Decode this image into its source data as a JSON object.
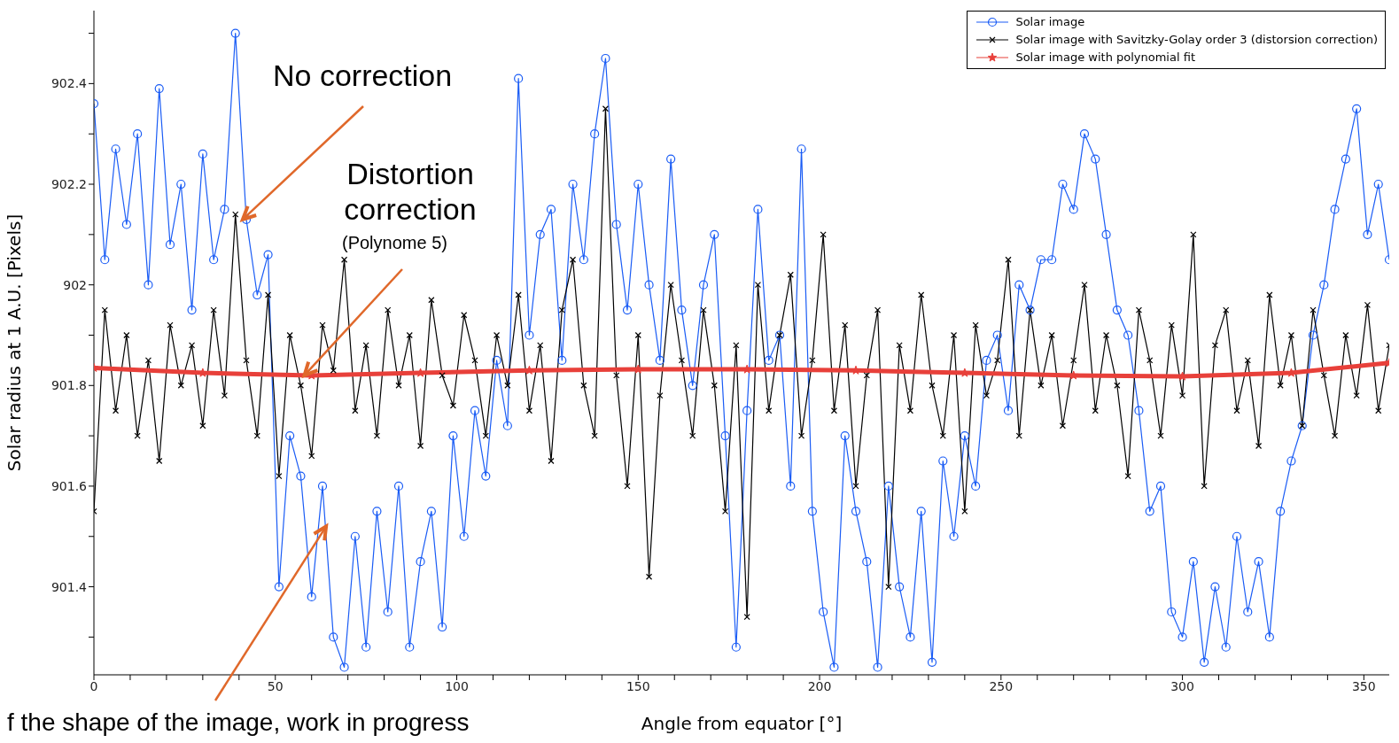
{
  "chart_data": {
    "type": "line",
    "xlabel": "Angle from equator [°]",
    "ylabel": "Solar radius at 1 A.U. [Pixels]",
    "xlim": [
      0,
      357
    ],
    "ylim": [
      901.225,
      902.545
    ],
    "xticks": [
      0,
      {
        "value": 10,
        "label": null
      },
      {
        "value": 20,
        "label": null
      },
      {
        "value": 30,
        "label": null
      },
      {
        "value": 40,
        "label": null
      },
      50,
      {
        "value": 60,
        "label": null
      },
      {
        "value": 70,
        "label": null
      },
      {
        "value": 80,
        "label": null
      },
      {
        "value": 90,
        "label": null
      },
      100,
      {
        "value": 110,
        "label": null
      },
      {
        "value": 120,
        "label": null
      },
      {
        "value": 130,
        "label": null
      },
      {
        "value": 140,
        "label": null
      },
      150,
      {
        "value": 160,
        "label": null
      },
      {
        "value": 170,
        "label": null
      },
      {
        "value": 180,
        "label": null
      },
      {
        "value": 190,
        "label": null
      },
      200,
      {
        "value": 210,
        "label": null
      },
      {
        "value": 220,
        "label": null
      },
      {
        "value": 230,
        "label": null
      },
      {
        "value": 240,
        "label": null
      },
      250,
      {
        "value": 260,
        "label": null
      },
      {
        "value": 270,
        "label": null
      },
      {
        "value": 280,
        "label": null
      },
      {
        "value": 290,
        "label": null
      },
      300,
      {
        "value": 310,
        "label": null
      },
      {
        "value": 320,
        "label": null
      },
      {
        "value": 330,
        "label": null
      },
      {
        "value": 340,
        "label": null
      },
      350
    ],
    "yticks": [
      {
        "value": 901.3,
        "label": null
      },
      901.4,
      {
        "value": 901.5,
        "label": null
      },
      901.6,
      {
        "value": 901.7,
        "label": null
      },
      901.8,
      {
        "value": 901.9,
        "label": null
      },
      902,
      {
        "value": 902.1,
        "label": null
      },
      902.2,
      {
        "value": 902.3,
        "label": null
      },
      902.4,
      {
        "value": 902.5,
        "label": null
      }
    ],
    "grid": false,
    "legend": "top right",
    "line_style": "solid",
    "x": [
      0,
      3,
      6,
      9,
      12,
      15,
      18,
      21,
      24,
      27,
      30,
      33,
      36,
      39,
      42,
      45,
      48,
      51,
      54,
      57,
      60,
      63,
      66,
      69,
      72,
      75,
      78,
      81,
      84,
      87,
      90,
      93,
      96,
      99,
      102,
      105,
      108,
      111,
      114,
      117,
      120,
      123,
      126,
      129,
      132,
      135,
      138,
      141,
      144,
      147,
      150,
      153,
      156,
      159,
      162,
      165,
      168,
      171,
      174,
      177,
      180,
      183,
      186,
      189,
      192,
      195,
      198,
      201,
      204,
      207,
      210,
      213,
      216,
      219,
      222,
      225,
      228,
      231,
      234,
      237,
      240,
      243,
      246,
      249,
      252,
      255,
      258,
      261,
      264,
      267,
      270,
      273,
      276,
      279,
      282,
      285,
      288,
      291,
      294,
      297,
      300,
      303,
      306,
      309,
      312,
      315,
      318,
      321,
      324,
      327,
      330,
      333,
      336,
      339,
      342,
      345,
      348,
      351,
      354,
      357
    ],
    "series": [
      {
        "name": "Solar image",
        "color": "#1a5cf5",
        "marker": "circle",
        "values": [
          902.36,
          902.05,
          902.27,
          902.12,
          902.3,
          902.0,
          902.39,
          902.08,
          902.2,
          901.95,
          902.26,
          902.05,
          902.15,
          902.5,
          902.13,
          901.98,
          902.06,
          901.4,
          901.7,
          901.62,
          901.38,
          901.6,
          901.3,
          901.24,
          901.5,
          901.28,
          901.55,
          901.35,
          901.6,
          901.28,
          901.45,
          901.55,
          901.32,
          901.7,
          901.5,
          901.75,
          901.62,
          901.85,
          901.72,
          902.41,
          901.9,
          902.1,
          902.15,
          901.85,
          902.2,
          902.05,
          902.3,
          902.45,
          902.12,
          901.95,
          902.2,
          902.0,
          901.85,
          902.25,
          901.95,
          901.8,
          902.0,
          902.1,
          901.7,
          901.28,
          901.75,
          902.15,
          901.85,
          901.9,
          901.6,
          902.27,
          901.55,
          901.35,
          901.24,
          901.7,
          901.55,
          901.45,
          901.24,
          901.6,
          901.4,
          901.3,
          901.55,
          901.25,
          901.65,
          901.5,
          901.7,
          901.6,
          901.85,
          901.9,
          901.75,
          902.0,
          901.95,
          902.05,
          902.05,
          902.2,
          902.15,
          902.3,
          902.25,
          902.1,
          901.95,
          901.9,
          901.75,
          901.55,
          901.6,
          901.35,
          901.3,
          901.45,
          901.25,
          901.4,
          901.28,
          901.5,
          901.35,
          901.45,
          901.3,
          901.55,
          901.65,
          901.72,
          901.9,
          902.0,
          902.15,
          902.25,
          902.35,
          902.1,
          902.2,
          902.05
        ]
      },
      {
        "name": "Solar image with Savitzky-Golay order 3 (distorsion correction)",
        "color": "#000000",
        "marker": "cross",
        "values": [
          901.55,
          901.95,
          901.75,
          901.9,
          901.7,
          901.85,
          901.65,
          901.92,
          901.8,
          901.88,
          901.72,
          901.95,
          901.78,
          902.14,
          901.85,
          901.7,
          901.98,
          901.62,
          901.9,
          901.8,
          901.66,
          901.92,
          901.83,
          902.05,
          901.75,
          901.88,
          901.7,
          901.95,
          901.8,
          901.9,
          901.68,
          901.97,
          901.82,
          901.76,
          901.94,
          901.85,
          901.7,
          901.9,
          901.8,
          901.98,
          901.75,
          901.88,
          901.65,
          901.95,
          902.05,
          901.8,
          901.7,
          902.35,
          901.82,
          901.6,
          901.9,
          901.42,
          901.78,
          902.0,
          901.85,
          901.7,
          901.95,
          901.8,
          901.55,
          901.88,
          901.34,
          902.0,
          901.75,
          901.9,
          902.02,
          901.7,
          901.85,
          902.1,
          901.75,
          901.92,
          901.6,
          901.82,
          901.95,
          901.4,
          901.88,
          901.75,
          901.98,
          901.8,
          901.7,
          901.9,
          901.55,
          901.92,
          901.78,
          901.85,
          902.05,
          901.7,
          901.95,
          901.8,
          901.9,
          901.72,
          901.85,
          902.0,
          901.75,
          901.9,
          901.8,
          901.62,
          901.95,
          901.85,
          901.7,
          901.92,
          901.78,
          902.1,
          901.6,
          901.88,
          901.95,
          901.75,
          901.85,
          901.68,
          901.98,
          901.8,
          901.9,
          901.72,
          901.95,
          901.82,
          901.7,
          901.9,
          901.78,
          901.96,
          901.75,
          901.88
        ]
      },
      {
        "name": "Solar image with polynomial fit",
        "color": "#e8403a",
        "marker": "star",
        "x": [
          0,
          30,
          60,
          90,
          120,
          150,
          180,
          210,
          240,
          270,
          300,
          330,
          357
        ],
        "values": [
          901.835,
          901.825,
          901.82,
          901.825,
          901.83,
          901.832,
          901.832,
          901.83,
          901.825,
          901.82,
          901.818,
          901.825,
          901.845
        ]
      }
    ],
    "annotations": [
      {
        "text": "No correction",
        "x": 41,
        "y": 902.13
      },
      "Distortion correction",
      {
        "text": "(Polynome 5)",
        "x": 58,
        "y": 901.82
      },
      {
        "text": "f the shape of the image, work in progress",
        "x": 64,
        "y": 901.52
      }
    ]
  }
}
